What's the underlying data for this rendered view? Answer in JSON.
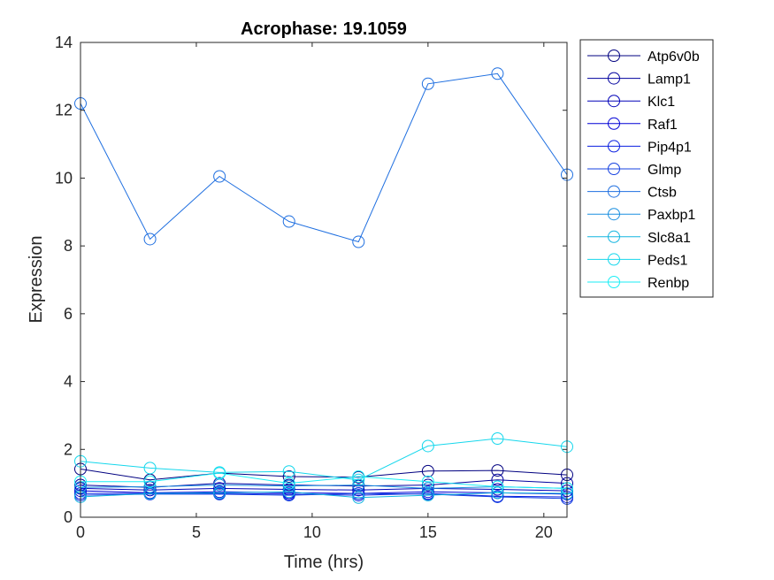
{
  "chart_data": {
    "type": "line",
    "title": "Acrophase: 19.1059",
    "xlabel": "Time (hrs)",
    "ylabel": "Expression",
    "xlim": [
      0,
      21
    ],
    "ylim": [
      0,
      14
    ],
    "xticks": [
      0,
      5,
      10,
      15,
      20
    ],
    "yticks": [
      0,
      2,
      4,
      6,
      8,
      10,
      12,
      14
    ],
    "grid": false,
    "legend_position": "outside-top-right",
    "marker": "circle",
    "x": [
      0,
      3,
      6,
      9,
      12,
      15,
      18,
      21
    ],
    "series": [
      {
        "name": "Atp6v0b",
        "color": "#000080",
        "values": [
          1.42,
          1.1,
          1.3,
          1.2,
          1.18,
          1.36,
          1.38,
          1.25
        ]
      },
      {
        "name": "Lamp1",
        "color": "#00009e",
        "values": [
          0.95,
          0.88,
          1.0,
          0.95,
          0.92,
          0.95,
          1.1,
          1.0
        ]
      },
      {
        "name": "Klc1",
        "color": "#0000b8",
        "values": [
          0.85,
          0.8,
          0.85,
          0.82,
          0.8,
          0.85,
          0.82,
          0.78
        ]
      },
      {
        "name": "Raf1",
        "color": "#0000d6",
        "values": [
          0.78,
          0.72,
          0.75,
          0.72,
          0.7,
          0.75,
          0.72,
          0.68
        ]
      },
      {
        "name": "Pip4p1",
        "color": "#0a1fe0",
        "values": [
          0.7,
          0.7,
          0.7,
          0.68,
          0.65,
          0.7,
          0.62,
          0.6
        ]
      },
      {
        "name": "Glmp",
        "color": "#1440e0",
        "values": [
          0.65,
          0.68,
          0.68,
          0.65,
          0.7,
          0.68,
          0.6,
          0.55
        ]
      },
      {
        "name": "Ctsb",
        "color": "#1f6fe0",
        "values": [
          12.2,
          8.2,
          10.05,
          8.72,
          8.12,
          12.78,
          13.08,
          10.1
        ]
      },
      {
        "name": "Paxbp1",
        "color": "#1a8fe0",
        "values": [
          0.88,
          0.9,
          0.95,
          0.92,
          0.95,
          0.85,
          0.9,
          0.85
        ]
      },
      {
        "name": "Slc8a1",
        "color": "#12b5e0",
        "values": [
          0.6,
          0.7,
          0.72,
          0.75,
          0.58,
          0.65,
          0.72,
          0.7
        ]
      },
      {
        "name": "Peds1",
        "color": "#15d7ec",
        "values": [
          1.65,
          1.45,
          1.32,
          1.35,
          1.1,
          2.1,
          2.32,
          2.08
        ]
      },
      {
        "name": "Renbp",
        "color": "#1aeef5",
        "values": [
          1.05,
          1.05,
          1.3,
          1.0,
          1.2,
          1.05,
          0.9,
          0.85
        ]
      }
    ]
  }
}
